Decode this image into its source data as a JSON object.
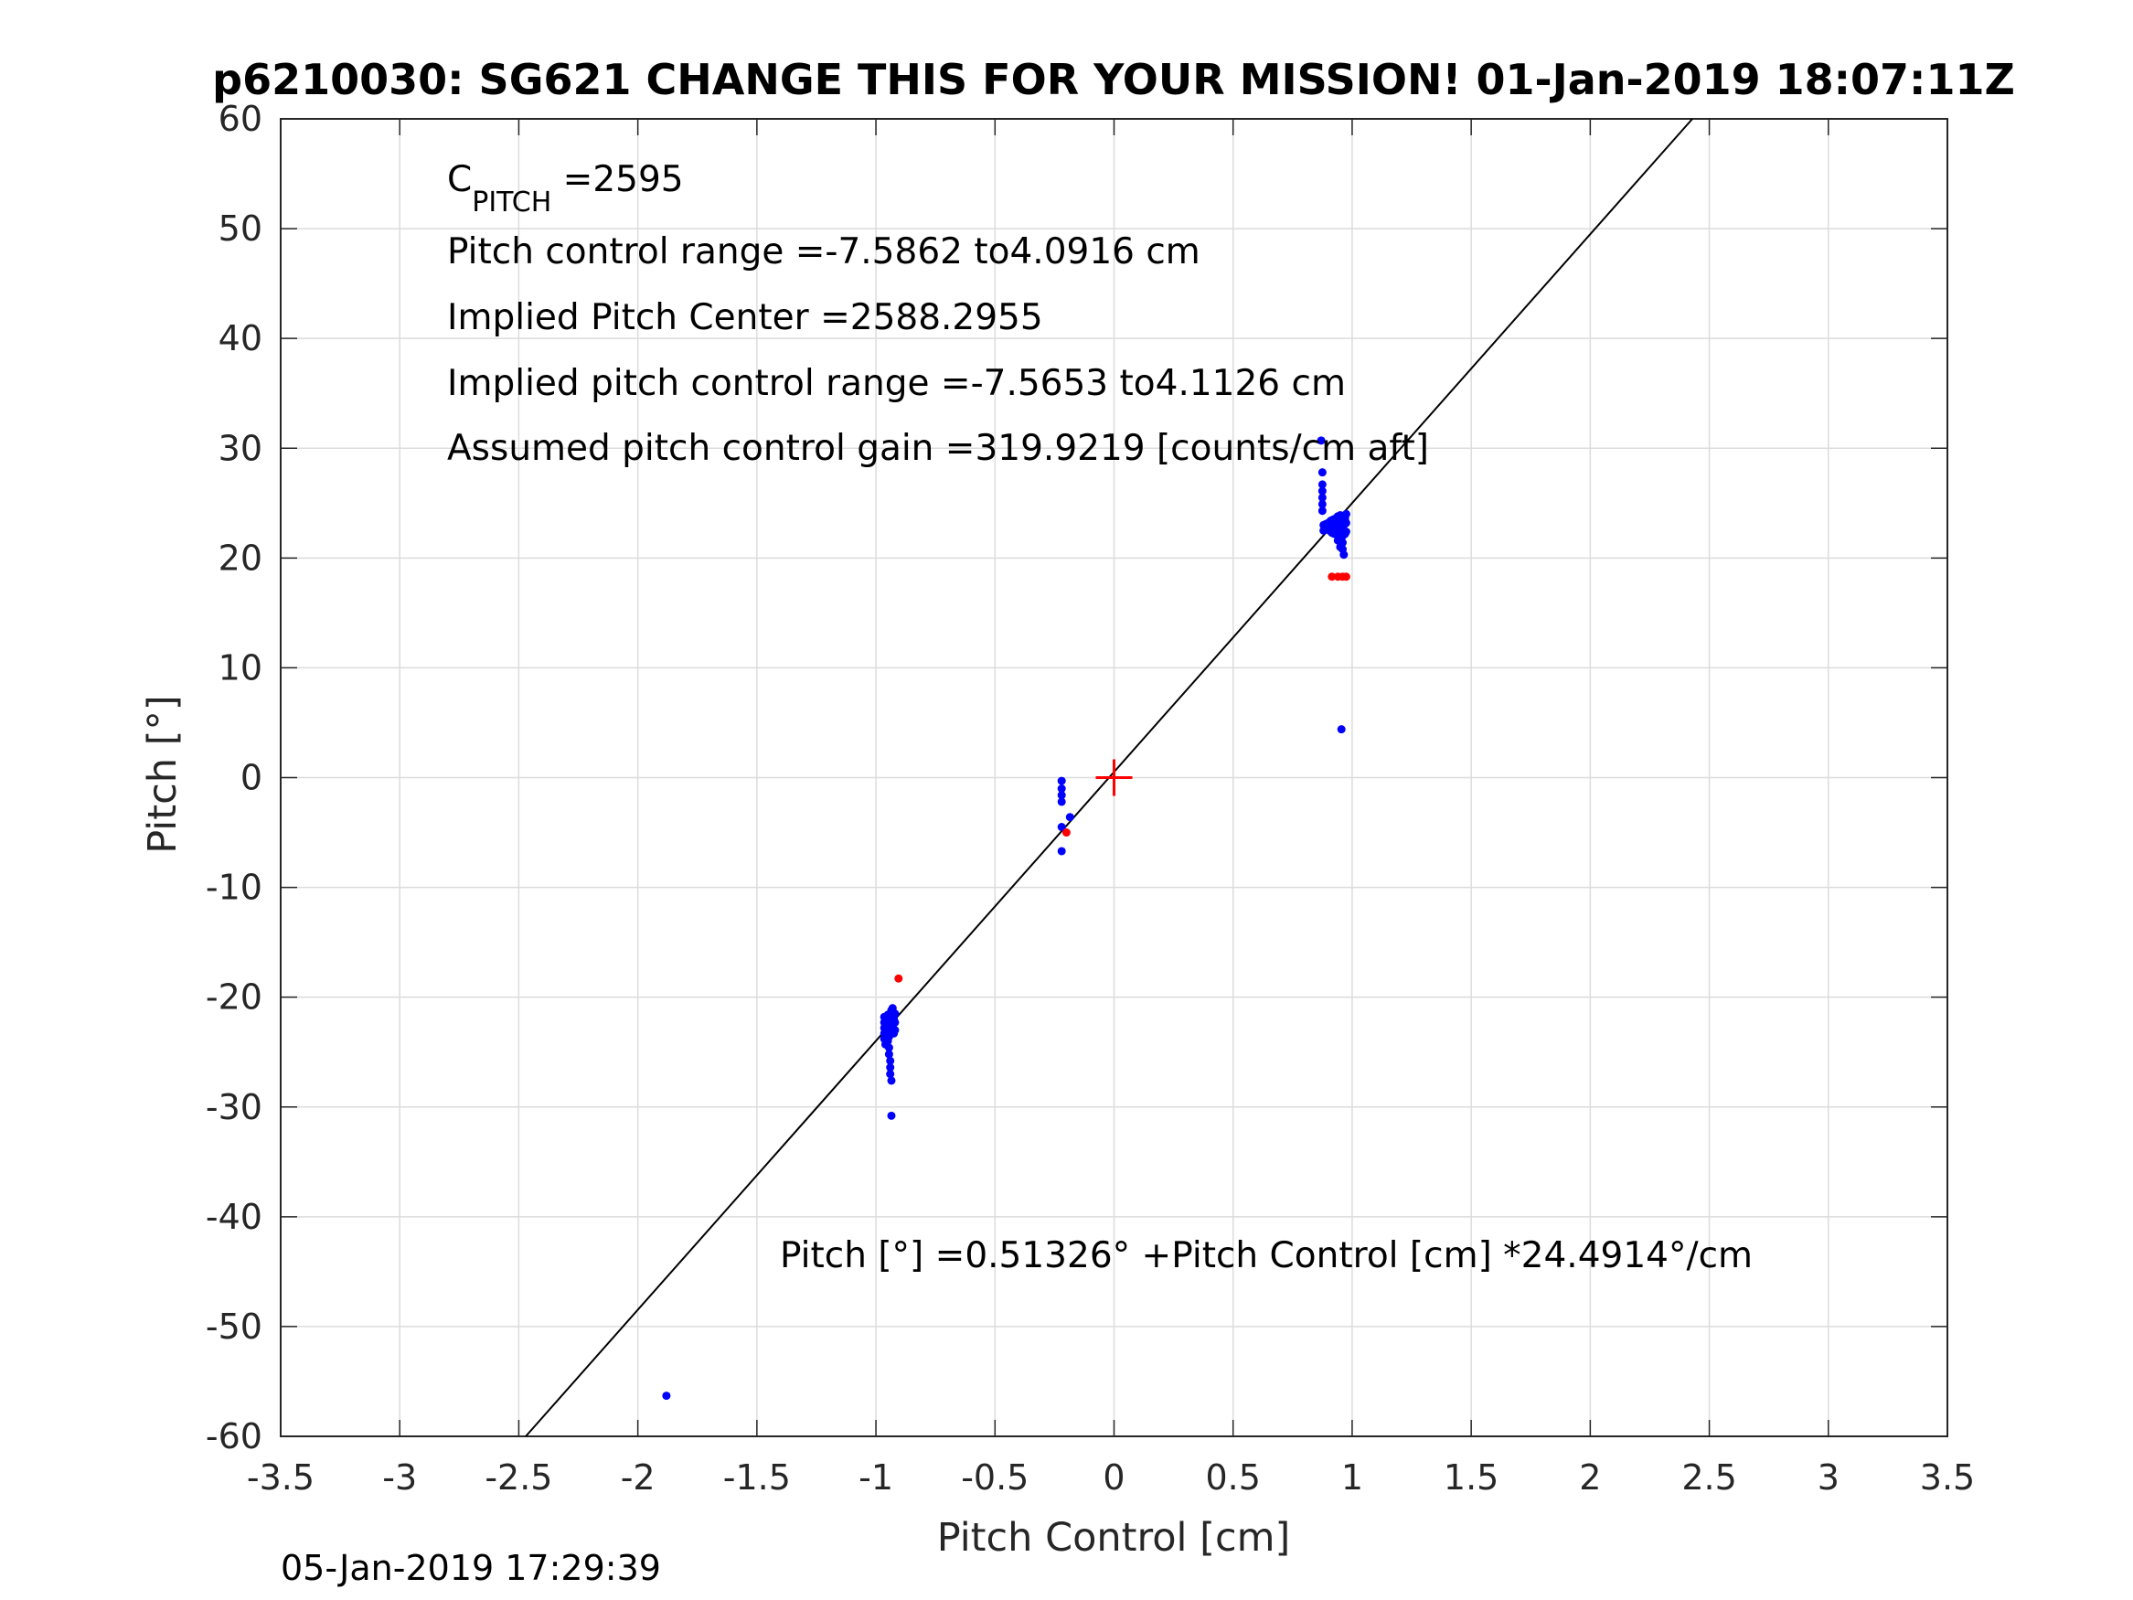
{
  "chart_data": {
    "type": "scatter",
    "title": "p6210030: SG621 CHANGE THIS FOR YOUR MISSION! 01-Jan-2019 18:07:11Z",
    "xlabel": "Pitch Control [cm]",
    "ylabel": "Pitch [°]",
    "xlim": [
      -3.5,
      3.5
    ],
    "ylim": [
      -60,
      60
    ],
    "xticks": [
      -3.5,
      -3,
      -2.5,
      -2,
      -1.5,
      -1,
      -0.5,
      0,
      0.5,
      1,
      1.5,
      2,
      2.5,
      3,
      3.5
    ],
    "xtick_labels": [
      "-3.5",
      "-3",
      "-2.5",
      "-2",
      "-1.5",
      "-1",
      "-0.5",
      "0",
      "0.5",
      "1",
      "1.5",
      "2",
      "2.5",
      "3",
      "3.5"
    ],
    "yticks": [
      -60,
      -50,
      -40,
      -30,
      -20,
      -10,
      0,
      10,
      20,
      30,
      40,
      50,
      60
    ],
    "ytick_labels": [
      "-60",
      "-50",
      "-40",
      "-30",
      "-20",
      "-10",
      "0",
      "10",
      "20",
      "30",
      "40",
      "50",
      "60"
    ],
    "grid": true,
    "colors": {
      "included": "#0000ff",
      "excluded": "#ff0000",
      "fit": "#000000",
      "center_marker": "#ff0000"
    },
    "fit_line": {
      "intercept": 0.51326,
      "slope": 24.4914
    },
    "center_marker": {
      "x": 0,
      "y": 0
    },
    "series": [
      {
        "color": "#0000ff",
        "points": [
          [
            -1.88,
            -56.3
          ],
          [
            0.955,
            4.4
          ],
          [
            -0.935,
            -30.8
          ],
          [
            -0.22,
            -6.7
          ],
          [
            -0.185,
            -3.6
          ],
          [
            -0.22,
            -4.5
          ],
          [
            -0.22,
            -2.2
          ],
          [
            -0.22,
            -1.6
          ],
          [
            -0.22,
            -1.0
          ],
          [
            -0.22,
            -0.3
          ],
          [
            -0.965,
            -21.8
          ],
          [
            -0.965,
            -22.3
          ],
          [
            -0.965,
            -22.8
          ],
          [
            -0.965,
            -23.3
          ],
          [
            -0.965,
            -23.8
          ],
          [
            -0.96,
            -24.3
          ],
          [
            -0.955,
            -22.0
          ],
          [
            -0.955,
            -22.6
          ],
          [
            -0.955,
            -23.2
          ],
          [
            -0.95,
            -21.6
          ],
          [
            -0.95,
            -22.4
          ],
          [
            -0.95,
            -24.0
          ],
          [
            -0.945,
            -24.6
          ],
          [
            -0.945,
            -25.2
          ],
          [
            -0.94,
            -25.8
          ],
          [
            -0.94,
            -26.4
          ],
          [
            -0.94,
            -27.0
          ],
          [
            -0.935,
            -27.6
          ],
          [
            -0.935,
            -21.2
          ],
          [
            -0.935,
            -22.2
          ],
          [
            -0.935,
            -23.0
          ],
          [
            -0.93,
            -21.0
          ],
          [
            -0.93,
            -21.8
          ],
          [
            -0.93,
            -22.6
          ],
          [
            -0.925,
            -23.3
          ],
          [
            -0.925,
            -22.0
          ],
          [
            -0.92,
            -21.5
          ],
          [
            -0.92,
            -22.3
          ],
          [
            -0.92,
            -23.0
          ],
          [
            -0.945,
            -23.6
          ],
          [
            0.87,
            30.7
          ],
          [
            0.875,
            27.8
          ],
          [
            0.875,
            26.7
          ],
          [
            0.875,
            26.1
          ],
          [
            0.875,
            25.5
          ],
          [
            0.875,
            24.9
          ],
          [
            0.875,
            24.3
          ],
          [
            0.88,
            23.0
          ],
          [
            0.88,
            22.5
          ],
          [
            0.885,
            22.9
          ],
          [
            0.89,
            23.1
          ],
          [
            0.895,
            22.7
          ],
          [
            0.9,
            23.2
          ],
          [
            0.905,
            22.8
          ],
          [
            0.91,
            23.4
          ],
          [
            0.915,
            23.0
          ],
          [
            0.92,
            23.5
          ],
          [
            0.925,
            22.9
          ],
          [
            0.93,
            23.6
          ],
          [
            0.935,
            23.1
          ],
          [
            0.94,
            23.8
          ],
          [
            0.945,
            23.3
          ],
          [
            0.95,
            23.9
          ],
          [
            0.955,
            22.6
          ],
          [
            0.96,
            22.0
          ],
          [
            0.96,
            21.4
          ],
          [
            0.96,
            20.8
          ],
          [
            0.965,
            20.3
          ],
          [
            0.965,
            23.0
          ],
          [
            0.97,
            23.6
          ],
          [
            0.97,
            22.2
          ],
          [
            0.975,
            24.0
          ],
          [
            0.975,
            23.2
          ],
          [
            0.975,
            22.4
          ],
          [
            0.945,
            22.2
          ],
          [
            0.94,
            21.6
          ],
          [
            0.95,
            21.0
          ],
          [
            0.935,
            22.4
          ],
          [
            0.925,
            22.2
          ],
          [
            0.915,
            22.3
          ],
          [
            0.905,
            22.5
          ]
        ]
      },
      {
        "color": "#ff0000",
        "points": [
          [
            -0.905,
            -18.3
          ],
          [
            -0.2,
            -5.0
          ],
          [
            0.915,
            18.3
          ],
          [
            0.94,
            18.3
          ],
          [
            0.96,
            18.3
          ],
          [
            0.975,
            18.3
          ]
        ]
      }
    ],
    "annotations": {
      "c_pitch_prefix": "C",
      "c_pitch_subscript": "PITCH",
      "c_pitch_value": " =2595",
      "pitch_control_range": "Pitch control range =-7.5862 to4.0916 cm",
      "implied_pitch_center": "Implied Pitch Center =2588.2955",
      "implied_pitch_control_range": "Implied pitch control range =-7.5653 to4.1126 cm",
      "assumed_gain": "Assumed pitch control gain =319.9219 [counts/cm aft]",
      "regression": "Pitch [°] =0.51326° +Pitch Control [cm] *24.4914°/cm"
    },
    "footer_timestamp": "05-Jan-2019 17:29:39"
  }
}
